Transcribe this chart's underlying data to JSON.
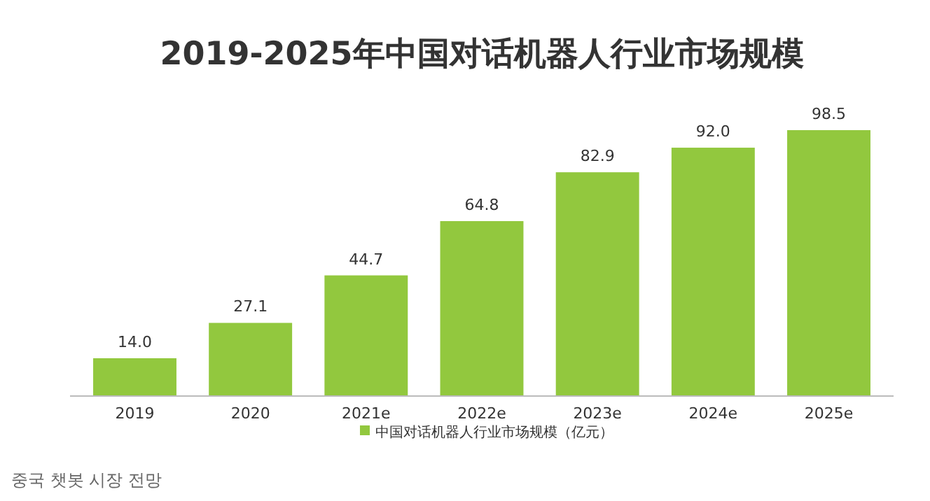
{
  "chart_data": {
    "type": "bar",
    "title": "2019-2025年中国对话机器人行业市场规模",
    "categories": [
      "2019",
      "2020",
      "2021e",
      "2022e",
      "2023e",
      "2024e",
      "2025e"
    ],
    "series": [
      {
        "name": "中国对话机器人行业市场规模（亿元）",
        "color": "#92c83e",
        "values": [
          14.0,
          27.1,
          44.7,
          64.8,
          82.9,
          92.0,
          98.5
        ],
        "value_labels": [
          "14.0",
          "27.1",
          "44.7",
          "64.8",
          "82.9",
          "92.0",
          "98.5"
        ]
      }
    ],
    "legend": "bottom",
    "grid": false,
    "annotations": [
      "중국 챗봇 시장 전망"
    ]
  }
}
